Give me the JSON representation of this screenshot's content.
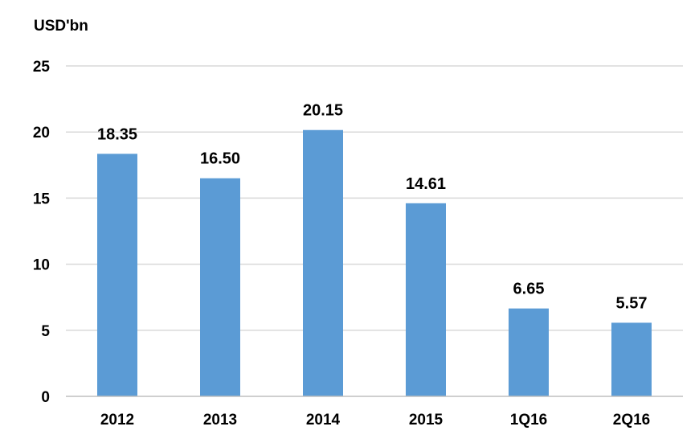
{
  "chart_data": {
    "type": "bar",
    "ylabel": "USD'bn",
    "categories": [
      "2012",
      "2013",
      "2014",
      "2015",
      "1Q16",
      "2Q16"
    ],
    "values": [
      18.35,
      16.5,
      20.15,
      14.61,
      6.65,
      5.57
    ],
    "value_labels": [
      "18.35",
      "16.50",
      "20.15",
      "14.61",
      "6.65",
      "5.57"
    ],
    "ylim": [
      0,
      25
    ],
    "yticks": [
      0,
      5,
      10,
      15,
      20,
      25
    ],
    "grid": true,
    "legend": "none",
    "bar_color": "#5B9BD5",
    "grid_color": "#D9D9D9"
  }
}
